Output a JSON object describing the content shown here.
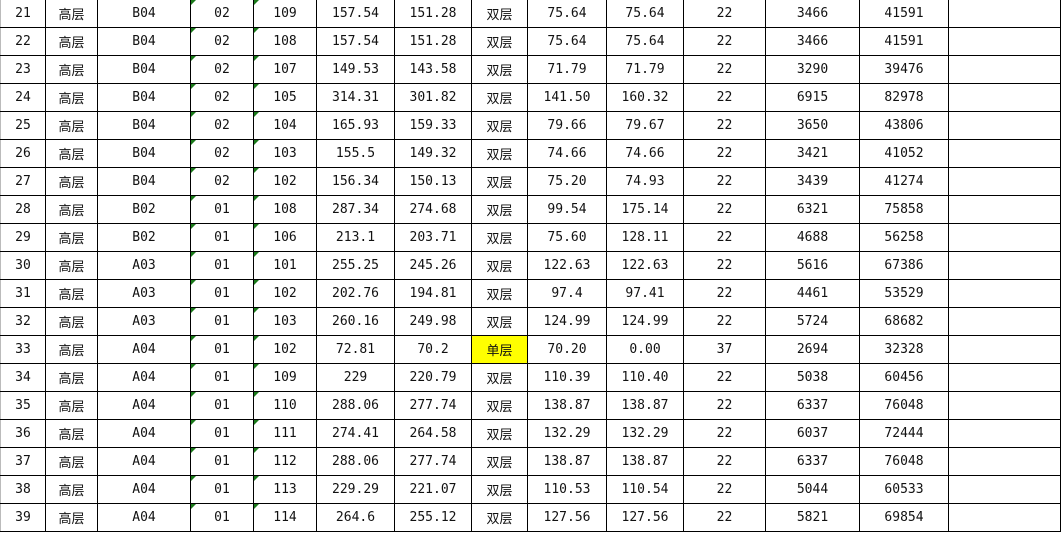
{
  "highlight_color": "#ffff00",
  "rows": [
    [
      "21",
      "高层",
      "B04",
      "02",
      "109",
      "157.54",
      "151.28",
      "双层",
      "75.64",
      "75.64",
      "22",
      "3466",
      "41591",
      ""
    ],
    [
      "22",
      "高层",
      "B04",
      "02",
      "108",
      "157.54",
      "151.28",
      "双层",
      "75.64",
      "75.64",
      "22",
      "3466",
      "41591",
      ""
    ],
    [
      "23",
      "高层",
      "B04",
      "02",
      "107",
      "149.53",
      "143.58",
      "双层",
      "71.79",
      "71.79",
      "22",
      "3290",
      "39476",
      ""
    ],
    [
      "24",
      "高层",
      "B04",
      "02",
      "105",
      "314.31",
      "301.82",
      "双层",
      "141.50",
      "160.32",
      "22",
      "6915",
      "82978",
      ""
    ],
    [
      "25",
      "高层",
      "B04",
      "02",
      "104",
      "165.93",
      "159.33",
      "双层",
      "79.66",
      "79.67",
      "22",
      "3650",
      "43806",
      ""
    ],
    [
      "26",
      "高层",
      "B04",
      "02",
      "103",
      "155.5",
      "149.32",
      "双层",
      "74.66",
      "74.66",
      "22",
      "3421",
      "41052",
      ""
    ],
    [
      "27",
      "高层",
      "B04",
      "02",
      "102",
      "156.34",
      "150.13",
      "双层",
      "75.20",
      "74.93",
      "22",
      "3439",
      "41274",
      ""
    ],
    [
      "28",
      "高层",
      "B02",
      "01",
      "108",
      "287.34",
      "274.68",
      "双层",
      "99.54",
      "175.14",
      "22",
      "6321",
      "75858",
      ""
    ],
    [
      "29",
      "高层",
      "B02",
      "01",
      "106",
      "213.1",
      "203.71",
      "双层",
      "75.60",
      "128.11",
      "22",
      "4688",
      "56258",
      ""
    ],
    [
      "30",
      "高层",
      "A03",
      "01",
      "101",
      "255.25",
      "245.26",
      "双层",
      "122.63",
      "122.63",
      "22",
      "5616",
      "67386",
      ""
    ],
    [
      "31",
      "高层",
      "A03",
      "01",
      "102",
      "202.76",
      "194.81",
      "双层",
      "97.4",
      "97.41",
      "22",
      "4461",
      "53529",
      ""
    ],
    [
      "32",
      "高层",
      "A03",
      "01",
      "103",
      "260.16",
      "249.98",
      "双层",
      "124.99",
      "124.99",
      "22",
      "5724",
      "68682",
      ""
    ],
    [
      "33",
      "高层",
      "A04",
      "01",
      "102",
      "72.81",
      "70.2",
      "单层",
      "70.20",
      "0.00",
      "37",
      "2694",
      "32328",
      ""
    ],
    [
      "34",
      "高层",
      "A04",
      "01",
      "109",
      "229",
      "220.79",
      "双层",
      "110.39",
      "110.40",
      "22",
      "5038",
      "60456",
      ""
    ],
    [
      "35",
      "高层",
      "A04",
      "01",
      "110",
      "288.06",
      "277.74",
      "双层",
      "138.87",
      "138.87",
      "22",
      "6337",
      "76048",
      ""
    ],
    [
      "36",
      "高层",
      "A04",
      "01",
      "111",
      "274.41",
      "264.58",
      "双层",
      "132.29",
      "132.29",
      "22",
      "6037",
      "72444",
      ""
    ],
    [
      "37",
      "高层",
      "A04",
      "01",
      "112",
      "288.06",
      "277.74",
      "双层",
      "138.87",
      "138.87",
      "22",
      "6337",
      "76048",
      ""
    ],
    [
      "38",
      "高层",
      "A04",
      "01",
      "113",
      "229.29",
      "221.07",
      "双层",
      "110.53",
      "110.54",
      "22",
      "5044",
      "60533",
      ""
    ],
    [
      "39",
      "高层",
      "A04",
      "01",
      "114",
      "264.6",
      "255.12",
      "双层",
      "127.56",
      "127.56",
      "22",
      "5821",
      "69854",
      ""
    ]
  ],
  "highlighted_cells": [
    [
      12,
      7
    ]
  ]
}
